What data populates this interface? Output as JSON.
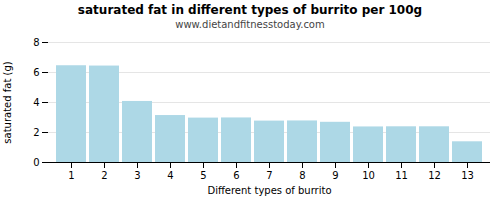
{
  "chart_data": {
    "type": "bar",
    "title": "saturated fat in different types of burrito per 100g",
    "subtitle": "www.dietandfitnesstoday.com",
    "xlabel": "Different types of burrito",
    "ylabel": "saturated fat (g)",
    "categories": [
      1,
      2,
      3,
      4,
      5,
      6,
      7,
      8,
      9,
      10,
      11,
      12,
      13
    ],
    "values": [
      6.45,
      6.43,
      4.07,
      3.13,
      2.96,
      2.97,
      2.76,
      2.77,
      2.68,
      2.37,
      2.38,
      2.38,
      1.38
    ],
    "color": "#add8e6",
    "ylim": [
      0,
      8
    ],
    "yticks": [
      0,
      2,
      4,
      6,
      8
    ],
    "grid": true
  }
}
